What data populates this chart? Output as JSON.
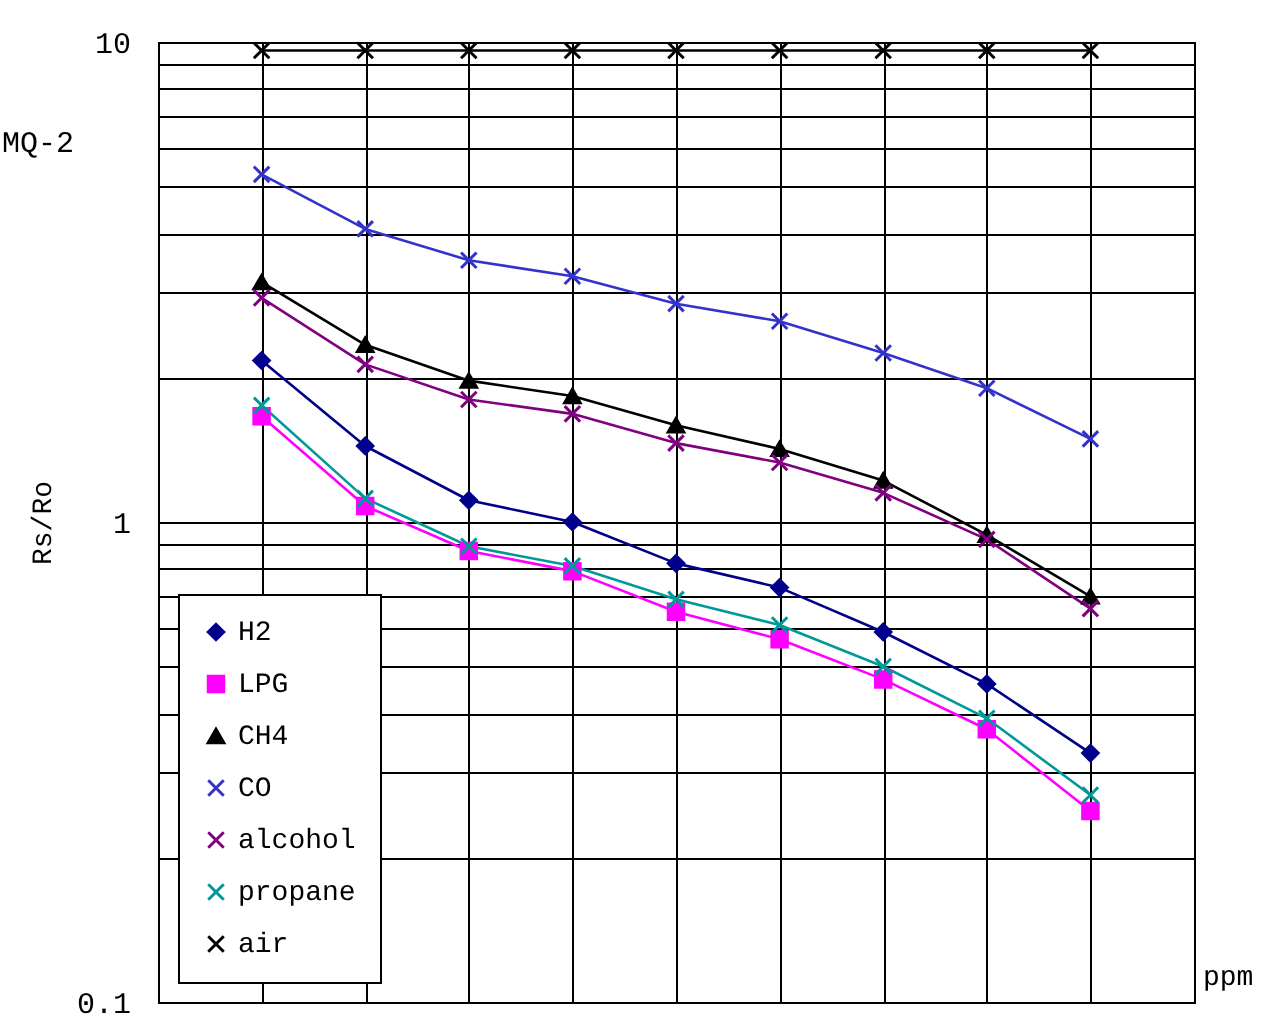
{
  "chart_data": {
    "type": "line",
    "title": "MQ-2",
    "xlabel": "ppm",
    "ylabel": "Rs/Ro",
    "categories": [
      null,
      null,
      null,
      null,
      null,
      null,
      null,
      null,
      null
    ],
    "series": [
      {
        "name": "H2",
        "color": "#00008b",
        "marker": "diamond",
        "values": [
          2.17,
          1.44,
          1.11,
          1.0,
          0.82,
          0.73,
          0.59,
          0.46,
          0.33
        ]
      },
      {
        "name": "LPG",
        "color": "#ff00ff",
        "marker": "square",
        "values": [
          1.66,
          1.08,
          0.87,
          0.79,
          0.65,
          0.57,
          0.47,
          0.37,
          0.25
        ]
      },
      {
        "name": "CH4",
        "color": "#000000",
        "marker": "triangle",
        "values": [
          3.16,
          2.34,
          1.97,
          1.83,
          1.59,
          1.42,
          1.22,
          0.94,
          0.7
        ]
      },
      {
        "name": "CO",
        "color": "#3333cc",
        "marker": "cross",
        "values": [
          5.3,
          4.08,
          3.51,
          3.25,
          2.85,
          2.62,
          2.25,
          1.9,
          1.49
        ]
      },
      {
        "name": "alcohol",
        "color": "#800080",
        "marker": "cross",
        "values": [
          2.93,
          2.13,
          1.8,
          1.68,
          1.46,
          1.33,
          1.15,
          0.92,
          0.66
        ]
      },
      {
        "name": "propane",
        "color": "#009999",
        "marker": "cross",
        "values": [
          1.75,
          1.12,
          0.89,
          0.81,
          0.69,
          0.61,
          0.5,
          0.39,
          0.27
        ]
      },
      {
        "name": "air",
        "color": "#000000",
        "marker": "cross",
        "values": [
          9.6,
          9.6,
          9.6,
          9.6,
          9.6,
          9.6,
          9.6,
          9.6,
          9.6
        ]
      }
    ],
    "log": true,
    "ylim": [
      0.1,
      10
    ],
    "yticks": [
      0.1,
      {
        "value": 0.2,
        "label": null
      },
      {
        "value": 0.3,
        "label": null
      },
      {
        "value": 0.4,
        "label": null
      },
      {
        "value": 0.5,
        "label": null
      },
      {
        "value": 0.6,
        "label": null
      },
      {
        "value": 0.7,
        "label": null
      },
      {
        "value": 0.8,
        "label": null
      },
      {
        "value": 0.9,
        "label": null
      },
      1,
      {
        "value": 2,
        "label": null
      },
      {
        "value": 3,
        "label": null
      },
      {
        "value": 4,
        "label": null
      },
      {
        "value": 5,
        "label": null
      },
      {
        "value": 6,
        "label": null
      },
      {
        "value": 7,
        "label": null
      },
      {
        "value": 8,
        "label": null
      },
      {
        "value": 9,
        "label": null
      },
      10
    ],
    "tick_labels": "y",
    "grid": true,
    "legend": "bottom left"
  }
}
